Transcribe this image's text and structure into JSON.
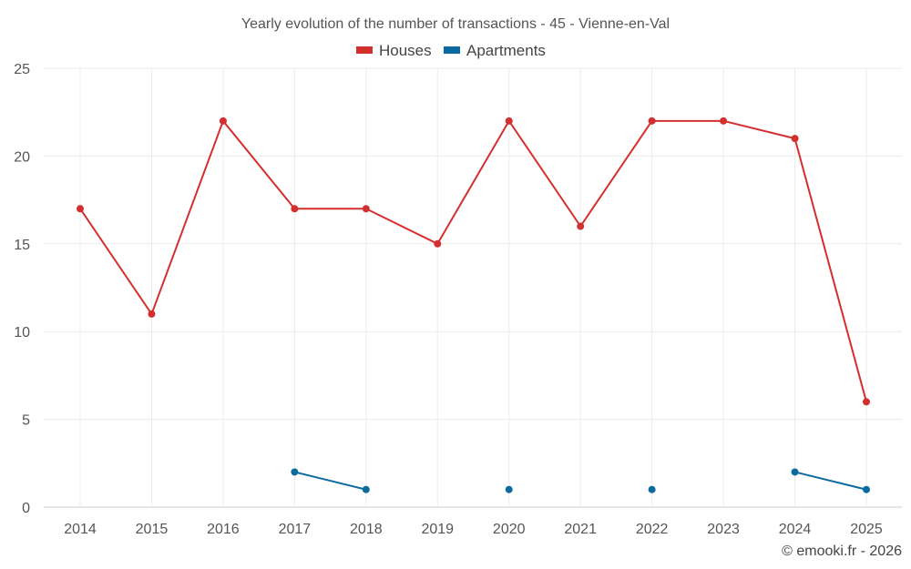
{
  "chart_data": {
    "type": "line",
    "title": "Yearly evolution of the number of transactions - 45 - Vienne-en-Val",
    "xlabel": "",
    "ylabel": "",
    "ylim": [
      0,
      25
    ],
    "yticks": [
      "0",
      "5",
      "10",
      "15",
      "20",
      "25"
    ],
    "categories": [
      "2014",
      "2015",
      "2016",
      "2017",
      "2018",
      "2019",
      "2020",
      "2021",
      "2022",
      "2023",
      "2024",
      "2025"
    ],
    "grid": true,
    "legend_position": "top-center",
    "series": [
      {
        "name": "Houses",
        "color": "#d32f2f",
        "values": [
          17,
          11,
          22,
          17,
          17,
          15,
          22,
          16,
          22,
          22,
          21,
          6
        ]
      },
      {
        "name": "Apartments",
        "color": "#0b6aa0",
        "values": [
          null,
          null,
          null,
          2,
          1,
          null,
          1,
          null,
          1,
          null,
          2,
          1
        ]
      }
    ]
  },
  "credit": "© emooki.fr - 2026"
}
